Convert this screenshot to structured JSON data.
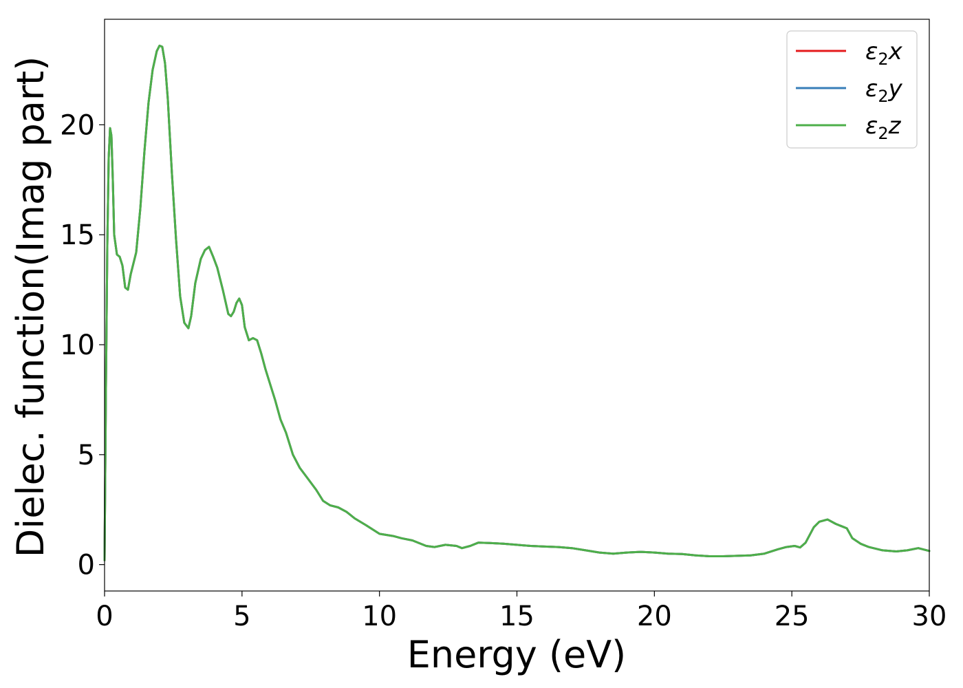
{
  "chart_data": {
    "type": "line",
    "xlabel": "Energy (eV)",
    "ylabel": "Dielec. function(Imag part)",
    "xlim": [
      0,
      30
    ],
    "ylim": [
      -1.2,
      24.8
    ],
    "xticks": [
      0,
      5,
      10,
      15,
      20,
      25,
      30
    ],
    "yticks": [
      0,
      5,
      10,
      15,
      20
    ],
    "grid": false,
    "legend_position": "top-right",
    "series": [
      {
        "name": "ε₂x",
        "legend_main": "ε",
        "legend_sub": "2",
        "legend_tail": "x",
        "color": "#e41a1c"
      },
      {
        "name": "ε₂y",
        "legend_main": "ε",
        "legend_sub": "2",
        "legend_tail": "y",
        "color": "#377eb8"
      },
      {
        "name": "ε₂z",
        "legend_main": "ε",
        "legend_sub": "2",
        "legend_tail": "z",
        "color": "#4daf4a"
      }
    ],
    "x": [
      0,
      0.05,
      0.1,
      0.15,
      0.2,
      0.25,
      0.3,
      0.35,
      0.45,
      0.55,
      0.65,
      0.75,
      0.85,
      0.95,
      1.05,
      1.15,
      1.3,
      1.45,
      1.6,
      1.75,
      1.9,
      2.0,
      2.1,
      2.2,
      2.3,
      2.45,
      2.6,
      2.75,
      2.9,
      3.05,
      3.15,
      3.3,
      3.5,
      3.65,
      3.8,
      3.95,
      4.1,
      4.3,
      4.5,
      4.6,
      4.7,
      4.8,
      4.9,
      5.0,
      5.1,
      5.25,
      5.4,
      5.55,
      5.7,
      5.85,
      6.0,
      6.2,
      6.4,
      6.6,
      6.85,
      7.1,
      7.4,
      7.7,
      7.95,
      8.2,
      8.5,
      8.8,
      9.1,
      9.5,
      10.0,
      10.5,
      10.8,
      11.2,
      11.7,
      12.0,
      12.4,
      12.8,
      13.0,
      13.3,
      13.6,
      14.0,
      14.5,
      15.0,
      15.5,
      16.0,
      16.5,
      17.0,
      17.5,
      18.0,
      18.5,
      19.0,
      19.5,
      20.0,
      20.5,
      21.0,
      21.5,
      22.0,
      22.5,
      23.0,
      23.5,
      24.0,
      24.5,
      24.8,
      25.1,
      25.3,
      25.5,
      25.8,
      26.0,
      26.3,
      26.6,
      26.8,
      27.0,
      27.2,
      27.5,
      27.8,
      28.3,
      28.8,
      29.2,
      29.6,
      30.0
    ],
    "y": [
      0.2,
      8.0,
      14.5,
      18.5,
      19.85,
      19.5,
      17.5,
      15.0,
      14.1,
      14.0,
      13.6,
      12.6,
      12.5,
      13.2,
      13.7,
      14.2,
      16.2,
      18.8,
      21.0,
      22.5,
      23.35,
      23.6,
      23.55,
      22.8,
      21.2,
      17.8,
      14.8,
      12.2,
      11.0,
      10.75,
      11.3,
      12.8,
      13.9,
      14.3,
      14.45,
      14.0,
      13.5,
      12.5,
      11.4,
      11.3,
      11.5,
      11.9,
      12.1,
      11.8,
      10.8,
      10.2,
      10.3,
      10.2,
      9.6,
      8.9,
      8.3,
      7.5,
      6.6,
      6.0,
      5.0,
      4.4,
      3.9,
      3.4,
      2.9,
      2.7,
      2.6,
      2.4,
      2.1,
      1.8,
      1.4,
      1.3,
      1.2,
      1.1,
      0.85,
      0.8,
      0.9,
      0.85,
      0.75,
      0.85,
      1.0,
      0.98,
      0.95,
      0.9,
      0.85,
      0.82,
      0.8,
      0.75,
      0.65,
      0.55,
      0.5,
      0.55,
      0.58,
      0.55,
      0.5,
      0.48,
      0.42,
      0.38,
      0.38,
      0.4,
      0.42,
      0.5,
      0.7,
      0.8,
      0.85,
      0.78,
      1.0,
      1.7,
      1.95,
      2.05,
      1.85,
      1.75,
      1.65,
      1.2,
      0.95,
      0.8,
      0.65,
      0.6,
      0.65,
      0.75,
      0.62
    ]
  }
}
